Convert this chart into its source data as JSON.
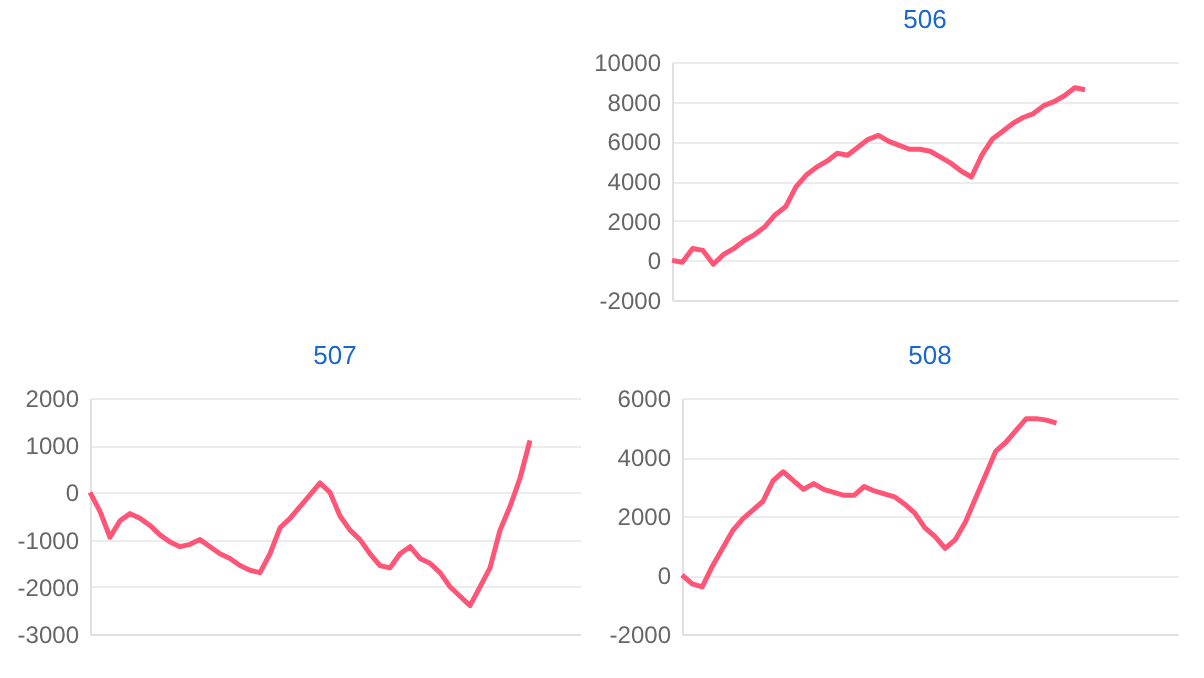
{
  "chart_data": [
    {
      "type": "line",
      "title": "506",
      "categories": [
        null,
        null,
        null,
        null,
        null,
        null,
        null,
        null,
        null,
        null,
        null,
        null,
        null,
        null,
        null,
        null,
        null,
        null,
        null,
        null,
        null,
        null,
        null,
        null,
        null,
        null,
        null,
        null,
        null,
        null,
        null,
        null,
        null,
        null,
        null,
        null,
        null,
        null,
        null,
        null,
        null,
        null,
        null,
        null,
        null,
        null,
        null,
        null,
        null,
        null
      ],
      "series": [
        {
          "color": "#ff5577",
          "values": [
            0,
            -100,
            600,
            500,
            -200,
            300,
            600,
            1000,
            1300,
            1700,
            2300,
            2700,
            3700,
            4300,
            4700,
            5000,
            5400,
            5300,
            5700,
            6100,
            6300,
            6000,
            5800,
            5600,
            5600,
            5500,
            5200,
            4900,
            4500,
            4200,
            5300,
            6100,
            6500,
            6900,
            7200,
            7400,
            7800,
            8000,
            8300,
            8700,
            8600,
            null,
            null,
            null,
            null,
            null,
            null,
            null,
            null,
            null
          ]
        }
      ],
      "ylim": [
        -2000,
        10000
      ],
      "yticks": [
        -2000,
        0,
        2000,
        4000,
        6000,
        8000,
        10000
      ],
      "grid": "y",
      "tick_labels": "y"
    },
    {
      "type": "line",
      "title": "507",
      "categories": [
        null,
        null,
        null,
        null,
        null,
        null,
        null,
        null,
        null,
        null,
        null,
        null,
        null,
        null,
        null,
        null,
        null,
        null,
        null,
        null,
        null,
        null,
        null,
        null,
        null,
        null,
        null,
        null,
        null,
        null,
        null,
        null,
        null,
        null,
        null,
        null,
        null,
        null,
        null,
        null,
        null,
        null,
        null,
        null,
        null,
        null,
        null,
        null,
        null,
        null
      ],
      "series": [
        {
          "color": "#ff5577",
          "values": [
            0,
            -400,
            -950,
            -600,
            -450,
            -550,
            -700,
            -900,
            -1050,
            -1150,
            -1100,
            -1000,
            -1150,
            -1300,
            -1400,
            -1550,
            -1650,
            -1700,
            -1300,
            -750,
            -550,
            -300,
            -50,
            200,
            0,
            -500,
            -800,
            -1000,
            -1300,
            -1550,
            -1600,
            -1300,
            -1150,
            -1400,
            -1500,
            -1700,
            -2000,
            -2200,
            -2400,
            -2000,
            -1600,
            -800,
            -300,
            300,
            1100,
            null,
            null,
            null,
            null,
            null
          ]
        }
      ],
      "ylim": [
        -3000,
        2000
      ],
      "yticks": [
        -3000,
        -2000,
        -1000,
        0,
        1000,
        2000
      ],
      "grid": "y",
      "tick_labels": "y"
    },
    {
      "type": "line",
      "title": "508",
      "categories": [
        null,
        null,
        null,
        null,
        null,
        null,
        null,
        null,
        null,
        null,
        null,
        null,
        null,
        null,
        null,
        null,
        null,
        null,
        null,
        null,
        null,
        null,
        null,
        null,
        null,
        null,
        null,
        null,
        null,
        null,
        null,
        null,
        null,
        null,
        null,
        null,
        null,
        null,
        null,
        null,
        null,
        null,
        null,
        null,
        null,
        null,
        null,
        null,
        null,
        null
      ],
      "series": [
        {
          "color": "#ff5577",
          "values": [
            0,
            -300,
            -400,
            300,
            900,
            1500,
            1900,
            2200,
            2500,
            3200,
            3500,
            3200,
            2900,
            3100,
            2900,
            2800,
            2700,
            2700,
            3000,
            2850,
            2750,
            2650,
            2400,
            2100,
            1600,
            1300,
            900,
            1200,
            1800,
            2600,
            3400,
            4200,
            4500,
            4900,
            5300,
            5300,
            5250,
            5150,
            null,
            null,
            null,
            null,
            null,
            null,
            null,
            null,
            null,
            null,
            null,
            null
          ]
        }
      ],
      "ylim": [
        -2000,
        6000
      ],
      "yticks": [
        -2000,
        0,
        2000,
        4000,
        6000
      ],
      "grid": "y",
      "tick_labels": "y"
    }
  ]
}
